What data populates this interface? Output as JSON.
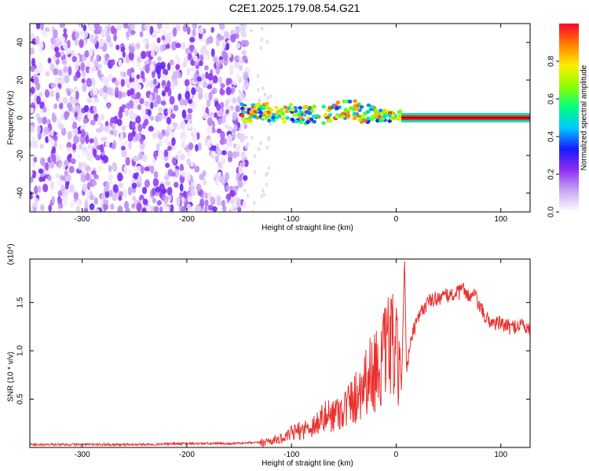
{
  "title": "C2E1.2025.179.08.54.G21",
  "chart_data": [
    {
      "type": "heatmap",
      "xlabel": "Height of straight line (km)",
      "ylabel": "Frequency (Hz)",
      "xlim": [
        -350,
        128
      ],
      "ylim": [
        -50,
        50
      ],
      "x_ticks": [
        -300,
        -200,
        -100,
        0,
        100
      ],
      "y_ticks": [
        -40,
        -20,
        0,
        20,
        40
      ],
      "colorbar": {
        "label": "Normalized spectral amplitude",
        "range": [
          0,
          1
        ],
        "ticks": [
          0.0,
          0.2,
          0.4,
          0.6,
          0.8
        ],
        "colormap": [
          "#ffffff",
          "#c9a8f5",
          "#8f2ff0",
          "#1a1aff",
          "#00c8ff",
          "#00ff80",
          "#8cff00",
          "#ffee00",
          "#ff8000",
          "#ff0030"
        ]
      },
      "regions": [
        {
          "name": "noise",
          "x_range": [
            -350,
            -148
          ],
          "freq_range": [
            -50,
            50
          ],
          "amplitude_range": [
            0.0,
            0.25
          ]
        },
        {
          "name": "signal",
          "x_range": [
            -148,
            5
          ],
          "freq_center": [
            [
              -148,
              3
            ],
            [
              -120,
              3
            ],
            [
              -100,
              2
            ],
            [
              -80,
              1
            ],
            [
              -60,
              3
            ],
            [
              -45,
              5
            ],
            [
              -30,
              2
            ],
            [
              -15,
              1
            ],
            [
              0,
              1
            ],
            [
              5,
              0.5
            ]
          ],
          "amplitude_range": [
            0.3,
            0.95
          ]
        },
        {
          "name": "line",
          "x_range": [
            5,
            128
          ],
          "freq_center": 0,
          "amplitude": 1.0
        }
      ]
    },
    {
      "type": "line",
      "xlabel": "Height of straight line (km)",
      "ylabel": "SNR (10 * v/v)",
      "y_multiplier": "(x10⁴)",
      "xlim": [
        -350,
        128
      ],
      "ylim": [
        0,
        1.95
      ],
      "x_ticks": [
        -300,
        -200,
        -100,
        0,
        100
      ],
      "y_ticks": [
        0.5,
        1.0,
        1.5
      ],
      "color": "#e8302e",
      "x": [
        -350,
        -300,
        -250,
        -200,
        -160,
        -130,
        -115,
        -105,
        -100,
        -90,
        -80,
        -70,
        -60,
        -50,
        -40,
        -30,
        -20,
        -10,
        -5,
        0,
        5,
        8,
        10,
        15,
        20,
        25,
        30,
        40,
        50,
        60,
        65,
        70,
        75,
        80,
        85,
        90,
        100,
        110,
        120,
        128
      ],
      "y": [
        0.03,
        0.03,
        0.03,
        0.04,
        0.04,
        0.05,
        0.08,
        0.1,
        0.15,
        0.18,
        0.22,
        0.3,
        0.35,
        0.4,
        0.5,
        0.7,
        0.8,
        0.95,
        1.1,
        0.95,
        0.6,
        1.95,
        0.8,
        1.15,
        1.3,
        1.42,
        1.5,
        1.55,
        1.57,
        1.6,
        1.65,
        1.55,
        1.58,
        1.45,
        1.35,
        1.3,
        1.28,
        1.24,
        1.28,
        1.2
      ]
    }
  ]
}
